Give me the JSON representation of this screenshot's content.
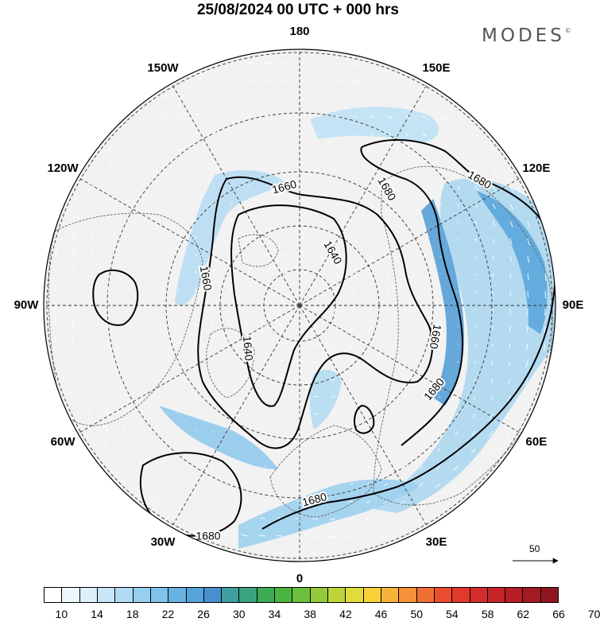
{
  "header": {
    "title": "25/08/2024  00 UTC  + 000 hrs",
    "brand": "MODES",
    "brand_mark": "©"
  },
  "map": {
    "projection": "north-polar-stereographic",
    "longitude_labels": [
      {
        "text": "180",
        "lon": 180
      },
      {
        "text": "150E",
        "lon": 150
      },
      {
        "text": "120E",
        "lon": 120
      },
      {
        "text": "90E",
        "lon": 90
      },
      {
        "text": "60E",
        "lon": 60
      },
      {
        "text": "30E",
        "lon": 30
      },
      {
        "text": "0",
        "lon": 0
      },
      {
        "text": "30W",
        "lon": -30
      },
      {
        "text": "60W",
        "lon": -60
      },
      {
        "text": "90W",
        "lon": -90
      },
      {
        "text": "120W",
        "lon": -120
      },
      {
        "text": "150W",
        "lon": -150
      }
    ],
    "contour_labels": [
      "1660",
      "1680",
      "1640",
      "1660",
      "1640",
      "1660",
      "1680",
      "1680",
      "1680",
      "1680"
    ],
    "wind_reference_label": "50"
  },
  "colorbar": {
    "tick_labels": [
      "10",
      "14",
      "18",
      "22",
      "26",
      "30",
      "34",
      "38",
      "42",
      "46",
      "50",
      "54",
      "58",
      "62",
      "66",
      "70"
    ],
    "colors": [
      "#ffffff",
      "#eef7fc",
      "#dcf0fa",
      "#c7e6f6",
      "#b0dbf2",
      "#98cfee",
      "#80c2e9",
      "#68b3e2",
      "#54a3da",
      "#4a90cf",
      "#3f9fa2",
      "#3aa37e",
      "#3daa55",
      "#4cb441",
      "#6cbf3c",
      "#93c93b",
      "#bdd43b",
      "#e2dc3a",
      "#f7d23a",
      "#f9b33a",
      "#f7913a",
      "#f26f33",
      "#eb4e2e",
      "#e03a2d",
      "#d42d2c",
      "#c62427",
      "#b51e24",
      "#a31b22",
      "#8f1620"
    ]
  }
}
